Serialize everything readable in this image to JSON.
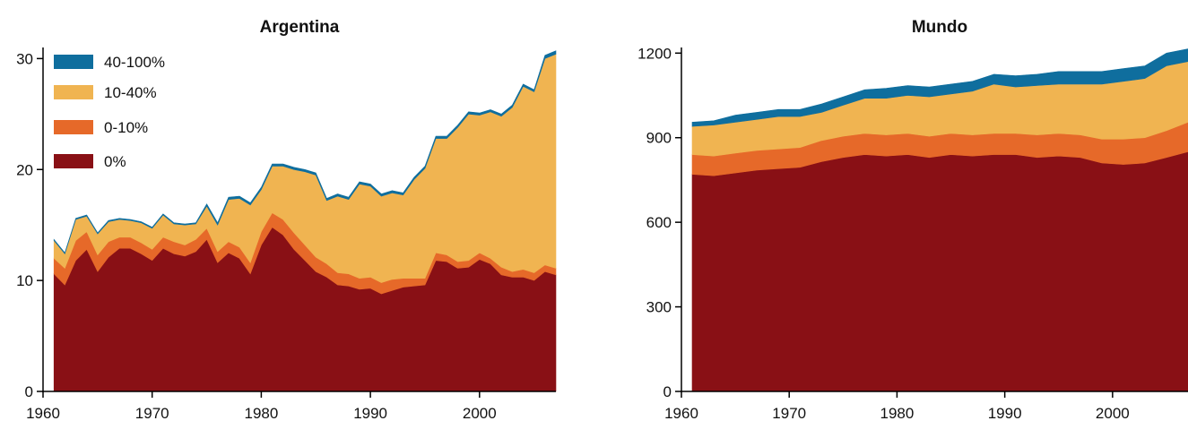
{
  "colors": {
    "40-100%": "#0f6e9e",
    "10-40%": "#f0b451",
    "0-10%": "#e66929",
    "0%": "#891015"
  },
  "chart_data": [
    {
      "type": "area",
      "stacked": true,
      "title": "Argentina",
      "xlabel": "",
      "ylabel": "",
      "xlim": [
        1960,
        2007
      ],
      "ylim": [
        0,
        31
      ],
      "xticks": [
        1960,
        1970,
        1980,
        1990,
        2000
      ],
      "yticks": [
        0,
        10,
        20,
        30
      ],
      "legend": {
        "placement": "top-left",
        "entries": [
          "40-100%",
          "10-40%",
          "0-10%",
          "0%"
        ]
      },
      "grid": false,
      "x": [
        1961,
        1962,
        1963,
        1964,
        1965,
        1966,
        1967,
        1968,
        1969,
        1970,
        1971,
        1972,
        1973,
        1974,
        1975,
        1976,
        1977,
        1978,
        1979,
        1980,
        1981,
        1982,
        1983,
        1984,
        1985,
        1986,
        1987,
        1988,
        1989,
        1990,
        1991,
        1992,
        1993,
        1994,
        1995,
        1996,
        1997,
        1998,
        1999,
        2000,
        2001,
        2002,
        2003,
        2004,
        2005,
        2006,
        2007
      ],
      "series": [
        {
          "name": "0%",
          "values": [
            10.6,
            9.6,
            11.8,
            12.8,
            10.8,
            12.1,
            12.9,
            12.9,
            12.4,
            11.8,
            12.9,
            12.4,
            12.2,
            12.6,
            13.7,
            11.6,
            12.5,
            12.0,
            10.6,
            13.2,
            14.8,
            14.1,
            12.8,
            11.8,
            10.8,
            10.3,
            9.6,
            9.5,
            9.2,
            9.3,
            8.8,
            9.1,
            9.4,
            9.5,
            9.6,
            11.8,
            11.7,
            11.1,
            11.2,
            11.9,
            11.5,
            10.5,
            10.3,
            10.3,
            10.0,
            10.8,
            10.5
          ]
        },
        {
          "name": "0-10%",
          "values": [
            1.4,
            1.5,
            1.8,
            1.6,
            1.5,
            1.4,
            1.0,
            1.0,
            1.0,
            1.0,
            1.0,
            1.1,
            1.0,
            1.1,
            1.0,
            1.0,
            1.0,
            1.0,
            1.0,
            1.2,
            1.3,
            1.4,
            1.5,
            1.4,
            1.3,
            1.2,
            1.1,
            1.1,
            1.0,
            1.0,
            1.0,
            1.0,
            0.8,
            0.7,
            0.6,
            0.7,
            0.6,
            0.6,
            0.6,
            0.6,
            0.5,
            0.7,
            0.5,
            0.7,
            0.7,
            0.6,
            0.6
          ]
        },
        {
          "name": "10-40%",
          "values": [
            1.6,
            1.3,
            1.9,
            1.4,
            1.9,
            1.8,
            1.6,
            1.5,
            1.8,
            1.9,
            2.0,
            1.6,
            1.8,
            1.4,
            2.0,
            2.4,
            3.8,
            4.4,
            5.2,
            3.8,
            4.2,
            4.8,
            5.7,
            6.6,
            7.4,
            5.7,
            6.9,
            6.7,
            8.5,
            8.2,
            7.8,
            7.8,
            7.5,
            8.9,
            9.9,
            10.3,
            10.5,
            12.1,
            13.2,
            12.4,
            13.2,
            13.6,
            14.8,
            16.5,
            16.3,
            18.6,
            19.3
          ]
        },
        {
          "name": "40-100%",
          "values": [
            0.1,
            0.1,
            0.1,
            0.1,
            0.1,
            0.1,
            0.1,
            0.1,
            0.1,
            0.1,
            0.1,
            0.1,
            0.1,
            0.1,
            0.2,
            0.2,
            0.2,
            0.2,
            0.2,
            0.2,
            0.2,
            0.2,
            0.2,
            0.2,
            0.2,
            0.2,
            0.2,
            0.2,
            0.2,
            0.2,
            0.2,
            0.2,
            0.2,
            0.2,
            0.2,
            0.2,
            0.2,
            0.2,
            0.2,
            0.2,
            0.2,
            0.2,
            0.2,
            0.2,
            0.2,
            0.3,
            0.3
          ]
        }
      ]
    },
    {
      "type": "area",
      "stacked": true,
      "title": "Mundo",
      "xlabel": "",
      "ylabel": "",
      "xlim": [
        1960,
        2007
      ],
      "ylim": [
        0,
        1220
      ],
      "xticks": [
        1960,
        1970,
        1980,
        1990,
        2000
      ],
      "yticks": [
        0,
        300,
        600,
        900,
        1200
      ],
      "grid": false,
      "x": [
        1961,
        1963,
        1965,
        1967,
        1969,
        1971,
        1973,
        1975,
        1977,
        1979,
        1981,
        1983,
        1985,
        1987,
        1989,
        1991,
        1993,
        1995,
        1997,
        1999,
        2001,
        2003,
        2005,
        2007
      ],
      "series": [
        {
          "name": "0%",
          "values": [
            770,
            765,
            775,
            785,
            790,
            795,
            815,
            830,
            840,
            835,
            840,
            830,
            840,
            835,
            840,
            840,
            830,
            835,
            830,
            810,
            805,
            810,
            830,
            850
          ]
        },
        {
          "name": "0-10%",
          "values": [
            70,
            70,
            70,
            70,
            70,
            70,
            75,
            75,
            75,
            75,
            75,
            75,
            75,
            75,
            75,
            75,
            80,
            80,
            80,
            85,
            90,
            90,
            95,
            105
          ]
        },
        {
          "name": "10-40%",
          "values": [
            100,
            110,
            110,
            110,
            115,
            110,
            100,
            110,
            125,
            130,
            135,
            140,
            140,
            155,
            175,
            165,
            175,
            175,
            180,
            195,
            205,
            210,
            230,
            215
          ]
        },
        {
          "name": "40-100%",
          "values": [
            15,
            15,
            25,
            25,
            25,
            25,
            30,
            30,
            30,
            35,
            35,
            35,
            35,
            35,
            35,
            40,
            40,
            45,
            45,
            45,
            45,
            45,
            45,
            45
          ]
        }
      ]
    }
  ]
}
